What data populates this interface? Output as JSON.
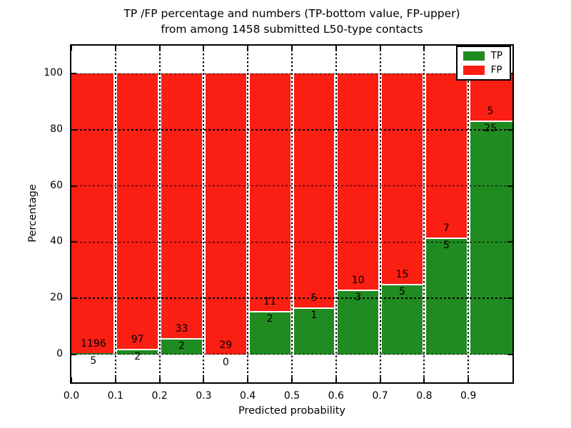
{
  "figure": {
    "title_line1": "TP /FP percentage and numbers (TP-bottom value, FP-upper)",
    "title_line2": "from among 1458 submitted L50-type contacts"
  },
  "chart_data": {
    "type": "bar",
    "stacked": true,
    "normalized": "percent",
    "title": "TP /FP percentage and numbers (TP-bottom value, FP-upper)\nfrom among 1458 submitted L50-type contacts",
    "xlabel": "Predicted probability",
    "ylabel": "Percentage",
    "total_contacts": 1458,
    "xlim": [
      0.0,
      1.0
    ],
    "ylim": [
      -10,
      110
    ],
    "bin_width": 0.1,
    "categories": [
      "0.0",
      "0.1",
      "0.2",
      "0.3",
      "0.4",
      "0.5",
      "0.6",
      "0.7",
      "0.8",
      "0.9"
    ],
    "xticks": [
      "0.0",
      "0.1",
      "0.2",
      "0.3",
      "0.4",
      "0.5",
      "0.6",
      "0.7",
      "0.8",
      "0.9"
    ],
    "yticks": [
      0,
      20,
      40,
      60,
      80,
      100
    ],
    "grid": true,
    "grid_style": "dotted",
    "legend_position": "upper right",
    "series": [
      {
        "name": "TP",
        "color": "#208b20",
        "counts": [
          5,
          2,
          2,
          0,
          2,
          1,
          3,
          5,
          5,
          25
        ]
      },
      {
        "name": "FP",
        "color": "#fb1e13",
        "counts": [
          1196,
          97,
          33,
          29,
          11,
          5,
          10,
          15,
          7,
          5
        ]
      }
    ],
    "tp_percent_of_bin": [
      0.42,
      2.02,
      5.71,
      0.0,
      15.38,
      16.67,
      23.08,
      25.0,
      41.67,
      83.33
    ]
  },
  "colors": {
    "tp_green": "#208b20",
    "fp_red": "#fb1e13",
    "grid": "#000000",
    "background": "#ffffff"
  }
}
